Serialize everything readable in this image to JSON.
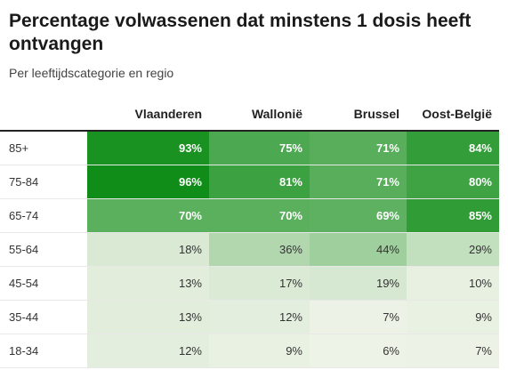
{
  "title": "Percentage volwassenen dat minstens 1 dosis heeft ontvangen",
  "subtitle": "Per leeftijdscategorie en regio",
  "chart_data": {
    "type": "heatmap",
    "title": "Percentage volwassenen dat minstens 1 dosis heeft ontvangen",
    "subtitle": "Per leeftijdscategorie en regio",
    "columns": [
      "Vlaanderen",
      "Wallonië",
      "Brussel",
      "Oost-België"
    ],
    "rows": [
      "85+",
      "75-84",
      "65-74",
      "55-64",
      "45-54",
      "35-44",
      "18-34"
    ],
    "values": [
      [
        93,
        75,
        71,
        84
      ],
      [
        96,
        81,
        71,
        80
      ],
      [
        70,
        70,
        69,
        85
      ],
      [
        18,
        36,
        44,
        29
      ],
      [
        13,
        17,
        19,
        10
      ],
      [
        13,
        12,
        7,
        9
      ],
      [
        12,
        9,
        6,
        7
      ]
    ],
    "unit": "%",
    "colors": {
      "low": "#f5f6ee",
      "high": "#04880d"
    }
  }
}
